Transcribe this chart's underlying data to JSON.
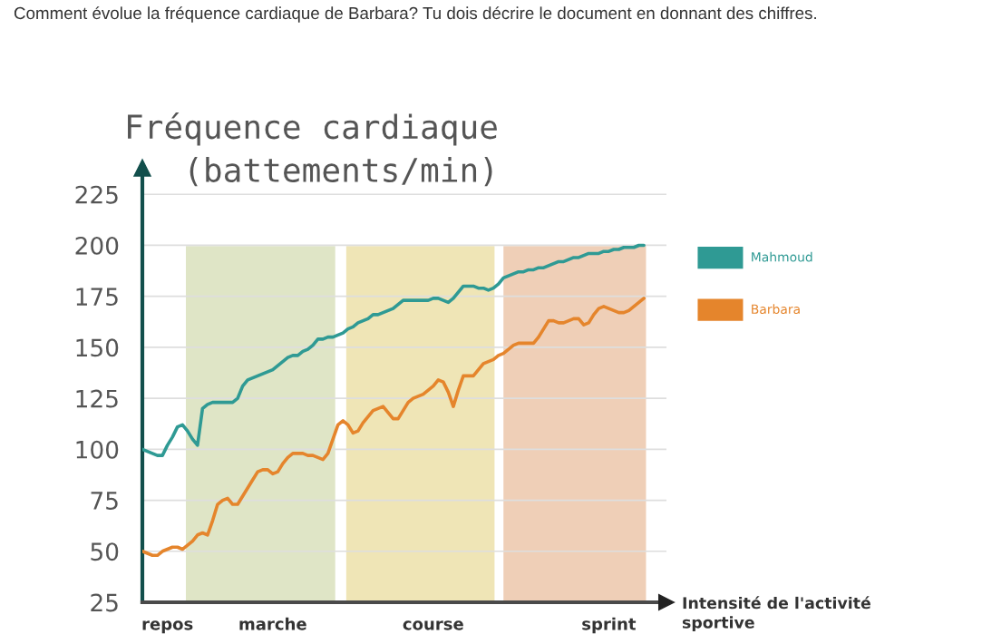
{
  "chart_data": {
    "type": "line",
    "title": "Comment évolue la fréquence cardiaque de Barbara? Tu dois décrire le document en donnant des chiffres.",
    "ylabel": "Fréquence cardiaque\n(battements/min)",
    "xlabel": "Intensité de l'activité\nsportive",
    "categories": [
      null,
      null,
      null,
      null,
      null,
      "repos",
      null,
      null,
      null,
      null,
      null,
      null,
      null,
      null,
      null,
      null,
      null,
      null,
      null,
      null,
      null,
      null,
      null,
      null,
      null,
      null,
      "marche",
      null,
      null,
      null,
      null,
      null,
      null,
      null,
      null,
      null,
      null,
      null,
      null,
      null,
      null,
      null,
      null,
      null,
      null,
      null,
      null,
      null,
      null,
      null,
      null,
      null,
      null,
      null,
      null,
      null,
      null,
      null,
      "course",
      null,
      null,
      null,
      null,
      null,
      null,
      null,
      null,
      null,
      null,
      null,
      null,
      null,
      null,
      null,
      null,
      null,
      null,
      null,
      null,
      null,
      null,
      null,
      null,
      null,
      null,
      null,
      null,
      null,
      null,
      null,
      null,
      null,
      null,
      "sprint",
      null,
      null,
      null,
      null,
      null,
      null,
      null
    ],
    "ylim": [
      25,
      238
    ],
    "yticks": [
      25,
      50,
      75,
      100,
      125,
      150,
      175,
      200,
      225
    ],
    "grid": "y",
    "legend": "top right",
    "marker": "none",
    "line_style": "solid",
    "series": [
      {
        "name": "Mahmoud",
        "color": "#2f9a94",
        "values": [
          100,
          99,
          98,
          97,
          97,
          102,
          106,
          111,
          112,
          109,
          105,
          102,
          120,
          122,
          123,
          123,
          123,
          123,
          123,
          125,
          131,
          134,
          135,
          136,
          137,
          138,
          139,
          141,
          143,
          145,
          146,
          146,
          148,
          149,
          151,
          154,
          154,
          155,
          155,
          156,
          157,
          159,
          160,
          162,
          163,
          164,
          166,
          166,
          167,
          168,
          169,
          171,
          173,
          173,
          173,
          173,
          173,
          173,
          174,
          174,
          173,
          172,
          174,
          177,
          180,
          180,
          180,
          179,
          179,
          178,
          179,
          181,
          184,
          185,
          186,
          187,
          187,
          188,
          188,
          189,
          189,
          190,
          191,
          192,
          192,
          193,
          194,
          194,
          195,
          196,
          196,
          196,
          197,
          197,
          198,
          198,
          199,
          199,
          199,
          200,
          200
        ]
      },
      {
        "name": "Barbara",
        "color": "#e5852c",
        "values": [
          50,
          49,
          48,
          48,
          50,
          51,
          52,
          52,
          51,
          53,
          55,
          58,
          59,
          58,
          65,
          73,
          75,
          76,
          73,
          73,
          77,
          81,
          85,
          89,
          90,
          90,
          88,
          89,
          93,
          96,
          98,
          98,
          98,
          97,
          97,
          96,
          95,
          98,
          105,
          112,
          114,
          112,
          108,
          109,
          113,
          116,
          119,
          120,
          121,
          118,
          115,
          115,
          119,
          123,
          125,
          126,
          127,
          129,
          131,
          134,
          133,
          128,
          121,
          129,
          136,
          136,
          136,
          139,
          142,
          143,
          144,
          146,
          147,
          149,
          151,
          152,
          152,
          152,
          152,
          155,
          159,
          163,
          163,
          162,
          162,
          163,
          164,
          164,
          161,
          162,
          166,
          169,
          170,
          169,
          168,
          167,
          167,
          168,
          170,
          172,
          174
        ]
      }
    ]
  }
}
